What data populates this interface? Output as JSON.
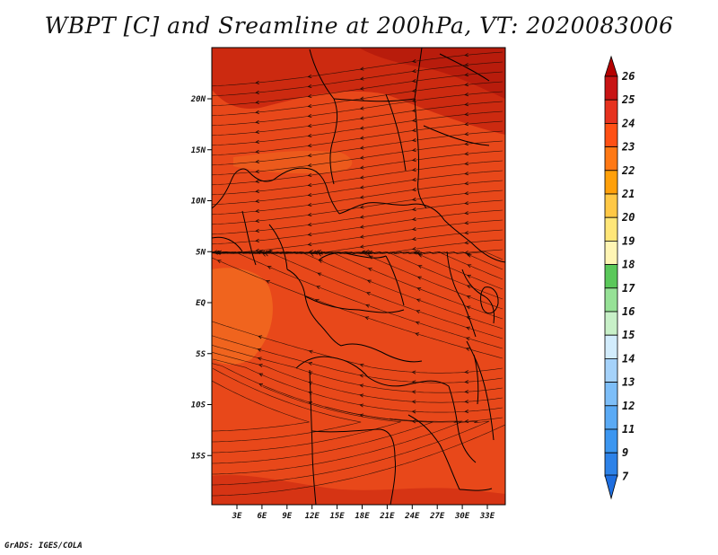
{
  "title": "WBPT [C] and Sreamline at 200hPa, VT: 2020083006",
  "credit": "GrADS: IGES/COLA",
  "map": {
    "lat_labels": [
      {
        "label": "20N",
        "lat": 20
      },
      {
        "label": "15N",
        "lat": 15
      },
      {
        "label": "10N",
        "lat": 10
      },
      {
        "label": "5N",
        "lat": 5
      },
      {
        "label": "EQ",
        "lat": 0
      },
      {
        "label": "5S",
        "lat": -5
      },
      {
        "label": "10S",
        "lat": -10
      },
      {
        "label": "15S",
        "lat": -15
      }
    ],
    "lon_labels": [
      {
        "label": "3E",
        "lon": 3
      },
      {
        "label": "6E",
        "lon": 6
      },
      {
        "label": "9E",
        "lon": 9
      },
      {
        "label": "12E",
        "lon": 12
      },
      {
        "label": "15E",
        "lon": 15
      },
      {
        "label": "18E",
        "lon": 18
      },
      {
        "label": "21E",
        "lon": 21
      },
      {
        "label": "24E",
        "lon": 24
      },
      {
        "label": "27E",
        "lon": 27
      },
      {
        "label": "30E",
        "lon": 30
      },
      {
        "label": "33E",
        "lon": 33
      }
    ]
  },
  "colorbar": {
    "levels": [
      "7",
      "9",
      "11",
      "12",
      "13",
      "14",
      "15",
      "16",
      "17",
      "18",
      "19",
      "20",
      "21",
      "22",
      "23",
      "24",
      "25",
      "26"
    ],
    "colors": [
      "#1e6ee0",
      "#2d82e8",
      "#3c96f0",
      "#5aaaf5",
      "#7dbef8",
      "#a5d2fa",
      "#d2ecfc",
      "#c8f0c8",
      "#96e196",
      "#5ac85a",
      "#fff5b4",
      "#ffe678",
      "#ffc846",
      "#ffa00a",
      "#ff7814",
      "#ff5014",
      "#e6321e",
      "#c81414",
      "#b40000"
    ]
  },
  "colors": {
    "field_main": "#e8481a",
    "field_dark": "#cc2a10",
    "field_light": "#f0641e",
    "border": "#000000"
  }
}
